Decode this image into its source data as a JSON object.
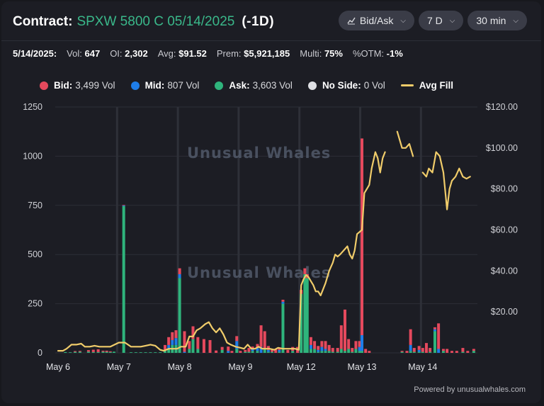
{
  "header": {
    "label": "Contract:",
    "contract": "SPXW 5800 C 05/14/2025",
    "dte": "(-1D)",
    "controls": [
      {
        "label": "Bid/Ask",
        "icon": "line-chart-icon"
      },
      {
        "label": "7 D"
      },
      {
        "label": "30 min"
      }
    ]
  },
  "stats": [
    {
      "label": "5/14/2025:",
      "value": ""
    },
    {
      "label": "Vol:",
      "value": "647"
    },
    {
      "label": "OI:",
      "value": "2,302"
    },
    {
      "label": "Avg:",
      "value": "$91.52"
    },
    {
      "label": "Prem:",
      "value": "$5,921,185"
    },
    {
      "label": "Multi:",
      "value": "75%"
    },
    {
      "label": "%OTM:",
      "value": "-1%"
    }
  ],
  "legend": [
    {
      "name": "Bid:",
      "value": "3,499 Vol",
      "color": "#e5495d"
    },
    {
      "name": "Mid:",
      "value": "807 Vol",
      "color": "#1e7de8"
    },
    {
      "name": "Ask:",
      "value": "3,603 Vol",
      "color": "#2fb47c"
    },
    {
      "name": "No Side:",
      "value": "0 Vol",
      "color": "#dfe0e4"
    },
    {
      "name": "Avg Fill",
      "value": "",
      "color": "#f0cc6a"
    }
  ],
  "watermark": "Unusual Whales",
  "footer": "Powered by unusualwhales.com",
  "colors": {
    "bid": "#e5495d",
    "mid": "#1e7de8",
    "ask": "#2fb47c",
    "avg": "#f0cc6a",
    "grid": "#2c2e37"
  },
  "chart_data": {
    "type": "bar",
    "title": "",
    "x_tick_labels": [
      "May 6",
      "May 7",
      "May 8",
      "May 9",
      "May 12",
      "May 13",
      "May 14"
    ],
    "y_left": {
      "min": 0,
      "max": 1250,
      "ticks": [
        "0",
        "250",
        "500",
        "750",
        "1000",
        "1250"
      ]
    },
    "y_right": {
      "min": 0,
      "max": 120,
      "ticks": [
        "",
        "$20.00",
        "$40.00",
        "$60.00",
        "$80.00",
        "$100.00",
        "$120.00"
      ]
    },
    "day_boundaries": [
      1,
      2,
      3,
      4,
      5,
      6
    ],
    "bars": [
      {
        "t": 0.12,
        "bid": 0,
        "mid": 0,
        "ask": 4
      },
      {
        "t": 0.2,
        "bid": 0,
        "mid": 0,
        "ask": 3
      },
      {
        "t": 0.28,
        "bid": 4,
        "mid": 0,
        "ask": 5
      },
      {
        "t": 0.36,
        "bid": 4,
        "mid": 0,
        "ask": 6
      },
      {
        "t": 0.5,
        "bid": 8,
        "mid": 0,
        "ask": 6
      },
      {
        "t": 0.58,
        "bid": 12,
        "mid": 0,
        "ask": 4
      },
      {
        "t": 0.66,
        "bid": 14,
        "mid": 0,
        "ask": 4
      },
      {
        "t": 0.74,
        "bid": 5,
        "mid": 0,
        "ask": 6
      },
      {
        "t": 0.8,
        "bid": 6,
        "mid": 0,
        "ask": 5
      },
      {
        "t": 0.86,
        "bid": 4,
        "mid": 0,
        "ask": 4
      },
      {
        "t": 0.92,
        "bid": 0,
        "mid": 0,
        "ask": 6
      },
      {
        "t": 1.08,
        "bid": 2,
        "mid": 4,
        "ask": 746
      },
      {
        "t": 1.2,
        "bid": 0,
        "mid": 0,
        "ask": 3
      },
      {
        "t": 1.28,
        "bid": 0,
        "mid": 0,
        "ask": 3
      },
      {
        "t": 1.36,
        "bid": 0,
        "mid": 0,
        "ask": 3
      },
      {
        "t": 1.44,
        "bid": 0,
        "mid": 0,
        "ask": 3
      },
      {
        "t": 1.52,
        "bid": 0,
        "mid": 0,
        "ask": 3
      },
      {
        "t": 1.6,
        "bid": 0,
        "mid": 0,
        "ask": 3
      },
      {
        "t": 1.68,
        "bid": 0,
        "mid": 0,
        "ask": 3
      },
      {
        "t": 1.76,
        "bid": 30,
        "mid": 0,
        "ask": 10
      },
      {
        "t": 1.82,
        "bid": 40,
        "mid": 20,
        "ask": 20
      },
      {
        "t": 1.88,
        "bid": 40,
        "mid": 25,
        "ask": 40
      },
      {
        "t": 1.94,
        "bid": 40,
        "mid": 35,
        "ask": 40
      },
      {
        "t": 2.0,
        "bid": 30,
        "mid": 20,
        "ask": 380
      },
      {
        "t": 2.08,
        "bid": 105,
        "mid": 5,
        "ask": 0
      },
      {
        "t": 2.16,
        "bid": 40,
        "mid": 0,
        "ask": 20
      },
      {
        "t": 2.22,
        "bid": 65,
        "mid": 0,
        "ask": 70
      },
      {
        "t": 2.3,
        "bid": 60,
        "mid": 0,
        "ask": 20
      },
      {
        "t": 2.4,
        "bid": 70,
        "mid": 0,
        "ask": 0
      },
      {
        "t": 2.5,
        "bid": 65,
        "mid": 0,
        "ask": 0
      },
      {
        "t": 2.6,
        "bid": 12,
        "mid": 0,
        "ask": 0
      },
      {
        "t": 2.7,
        "bid": 15,
        "mid": 0,
        "ask": 15
      },
      {
        "t": 2.8,
        "bid": 22,
        "mid": 10,
        "ask": 0
      },
      {
        "t": 2.86,
        "bid": 10,
        "mid": 0,
        "ask": 0
      },
      {
        "t": 2.94,
        "bid": 25,
        "mid": 40,
        "ask": 20
      },
      {
        "t": 3.0,
        "bid": 10,
        "mid": 0,
        "ask": 0
      },
      {
        "t": 3.08,
        "bid": 10,
        "mid": 0,
        "ask": 5
      },
      {
        "t": 3.14,
        "bid": 20,
        "mid": 0,
        "ask": 5
      },
      {
        "t": 3.2,
        "bid": 10,
        "mid": 12,
        "ask": 10
      },
      {
        "t": 3.28,
        "bid": 20,
        "mid": 15,
        "ask": 10
      },
      {
        "t": 3.34,
        "bid": 110,
        "mid": 30,
        "ask": 0
      },
      {
        "t": 3.4,
        "bid": 90,
        "mid": 0,
        "ask": 20
      },
      {
        "t": 3.46,
        "bid": 20,
        "mid": 10,
        "ask": 5
      },
      {
        "t": 3.52,
        "bid": 10,
        "mid": 0,
        "ask": 5
      },
      {
        "t": 3.58,
        "bid": 20,
        "mid": 0,
        "ask": 0
      },
      {
        "t": 3.64,
        "bid": 10,
        "mid": 10,
        "ask": 5
      },
      {
        "t": 3.7,
        "bid": 10,
        "mid": 10,
        "ask": 250
      },
      {
        "t": 3.78,
        "bid": 15,
        "mid": 0,
        "ask": 0
      },
      {
        "t": 3.86,
        "bid": 20,
        "mid": 0,
        "ask": 10
      },
      {
        "t": 3.94,
        "bid": 30,
        "mid": 0,
        "ask": 0
      },
      {
        "t": 4.0,
        "bid": 20,
        "mid": 0,
        "ask": 300
      },
      {
        "t": 4.06,
        "bid": 30,
        "mid": 0,
        "ask": 400
      },
      {
        "t": 4.1,
        "bid": 20,
        "mid": 0,
        "ask": 380
      },
      {
        "t": 4.16,
        "bid": 40,
        "mid": 20,
        "ask": 20
      },
      {
        "t": 4.22,
        "bid": 40,
        "mid": 0,
        "ask": 20
      },
      {
        "t": 4.28,
        "bid": 20,
        "mid": 10,
        "ask": 5
      },
      {
        "t": 4.34,
        "bid": 30,
        "mid": 20,
        "ask": 10
      },
      {
        "t": 4.4,
        "bid": 40,
        "mid": 10,
        "ask": 10
      },
      {
        "t": 4.46,
        "bid": 30,
        "mid": 0,
        "ask": 10
      },
      {
        "t": 4.52,
        "bid": 20,
        "mid": 0,
        "ask": 5
      },
      {
        "t": 4.6,
        "bid": 20,
        "mid": 0,
        "ask": 5
      },
      {
        "t": 4.66,
        "bid": 120,
        "mid": 0,
        "ask": 20
      },
      {
        "t": 4.72,
        "bid": 210,
        "mid": 0,
        "ask": 10
      },
      {
        "t": 4.78,
        "bid": 50,
        "mid": 0,
        "ask": 20
      },
      {
        "t": 4.84,
        "bid": 20,
        "mid": 0,
        "ask": 5
      },
      {
        "t": 4.9,
        "bid": 40,
        "mid": 0,
        "ask": 20
      },
      {
        "t": 4.96,
        "bid": 30,
        "mid": 20,
        "ask": 10
      },
      {
        "t": 5.0,
        "bid": 1000,
        "mid": 80,
        "ask": 10
      },
      {
        "t": 5.06,
        "bid": 20,
        "mid": 0,
        "ask": 0
      },
      {
        "t": 5.12,
        "bid": 10,
        "mid": 0,
        "ask": 0
      },
      {
        "t": 5.66,
        "bid": 5,
        "mid": 0,
        "ask": 5
      },
      {
        "t": 5.74,
        "bid": 10,
        "mid": 0,
        "ask": 0
      },
      {
        "t": 5.8,
        "bid": 80,
        "mid": 30,
        "ask": 10
      },
      {
        "t": 5.86,
        "bid": 20,
        "mid": 0,
        "ask": 5
      },
      {
        "t": 5.94,
        "bid": 20,
        "mid": 10,
        "ask": 5
      },
      {
        "t": 6.0,
        "bid": 20,
        "mid": 0,
        "ask": 5
      },
      {
        "t": 6.06,
        "bid": 50,
        "mid": 0,
        "ask": 0
      },
      {
        "t": 6.12,
        "bid": 20,
        "mid": 0,
        "ask": 5
      },
      {
        "t": 6.2,
        "bid": 10,
        "mid": 10,
        "ask": 110
      },
      {
        "t": 6.26,
        "bid": 130,
        "mid": 20,
        "ask": 0
      },
      {
        "t": 6.34,
        "bid": 10,
        "mid": 0,
        "ask": 10
      },
      {
        "t": 6.4,
        "bid": 20,
        "mid": 0,
        "ask": 0
      },
      {
        "t": 6.48,
        "bid": 10,
        "mid": 0,
        "ask": 0
      },
      {
        "t": 6.56,
        "bid": 10,
        "mid": 0,
        "ask": 0
      },
      {
        "t": 6.66,
        "bid": 20,
        "mid": 0,
        "ask": 5
      },
      {
        "t": 6.74,
        "bid": 10,
        "mid": 0,
        "ask": 0
      },
      {
        "t": 6.84,
        "bid": 10,
        "mid": 0,
        "ask": 10
      }
    ],
    "avg_fill": [
      [
        [
          0.0,
          1
        ],
        [
          0.08,
          1
        ],
        [
          0.14,
          2
        ],
        [
          0.22,
          4
        ],
        [
          0.3,
          4
        ],
        [
          0.38,
          4.5
        ],
        [
          0.44,
          3
        ],
        [
          0.52,
          3
        ],
        [
          0.6,
          3.5
        ],
        [
          0.68,
          3
        ],
        [
          0.76,
          3
        ],
        [
          0.86,
          3
        ],
        [
          1.0,
          5
        ],
        [
          1.1,
          5
        ],
        [
          1.2,
          3
        ],
        [
          1.28,
          3
        ],
        [
          1.36,
          3
        ],
        [
          1.44,
          3.5
        ],
        [
          1.52,
          4
        ],
        [
          1.6,
          3.5
        ],
        [
          1.68,
          1.5
        ],
        [
          1.74,
          1
        ],
        [
          1.82,
          2
        ],
        [
          1.9,
          2
        ],
        [
          1.96,
          2
        ],
        [
          2.02,
          3
        ],
        [
          2.1,
          3
        ],
        [
          2.16,
          8
        ],
        [
          2.22,
          8
        ],
        [
          2.28,
          11
        ],
        [
          2.34,
          12
        ],
        [
          2.42,
          14
        ],
        [
          2.48,
          15
        ],
        [
          2.54,
          12
        ],
        [
          2.6,
          10
        ],
        [
          2.66,
          12
        ],
        [
          2.72,
          9
        ],
        [
          2.78,
          5
        ],
        [
          2.84,
          4
        ],
        [
          2.92,
          3
        ],
        [
          3.0,
          2.5
        ],
        [
          3.06,
          2
        ],
        [
          3.12,
          4
        ],
        [
          3.18,
          2
        ],
        [
          3.24,
          2
        ],
        [
          3.3,
          3
        ],
        [
          3.36,
          2
        ],
        [
          3.42,
          2
        ],
        [
          3.48,
          2
        ],
        [
          3.56,
          1.5
        ],
        [
          3.62,
          2.5
        ],
        [
          3.7,
          2
        ],
        [
          3.76,
          2
        ],
        [
          3.82,
          2
        ],
        [
          3.9,
          2
        ],
        [
          3.96,
          1.5
        ],
        [
          4.0,
          33
        ],
        [
          4.04,
          36
        ],
        [
          4.08,
          38
        ],
        [
          4.12,
          37
        ],
        [
          4.16,
          35
        ],
        [
          4.2,
          33
        ],
        [
          4.24,
          30
        ],
        [
          4.28,
          30
        ],
        [
          4.32,
          28
        ],
        [
          4.4,
          34
        ],
        [
          4.46,
          40
        ],
        [
          4.52,
          44
        ],
        [
          4.56,
          48
        ],
        [
          4.6,
          47
        ],
        [
          4.64,
          48
        ],
        [
          4.7,
          50
        ],
        [
          4.76,
          52
        ],
        [
          4.8,
          48
        ],
        [
          4.84,
          46
        ],
        [
          4.88,
          50
        ],
        [
          4.92,
          58
        ],
        [
          5.0,
          60
        ],
        [
          5.04,
          78
        ],
        [
          5.08,
          80
        ],
        [
          5.12,
          82
        ],
        [
          5.16,
          90
        ],
        [
          5.22,
          98
        ],
        [
          5.26,
          95
        ],
        [
          5.3,
          88
        ],
        [
          5.34,
          95
        ],
        [
          5.38,
          98
        ]
      ],
      [
        [
          5.58,
          108
        ],
        [
          5.66,
          100
        ],
        [
          5.72,
          100
        ],
        [
          5.78,
          102
        ],
        [
          5.84,
          96
        ]
      ],
      [
        [
          6.0,
          88
        ],
        [
          6.06,
          86
        ],
        [
          6.1,
          90
        ],
        [
          6.16,
          88
        ],
        [
          6.22,
          98
        ],
        [
          6.28,
          96
        ],
        [
          6.34,
          88
        ],
        [
          6.4,
          70
        ],
        [
          6.44,
          80
        ],
        [
          6.48,
          84
        ],
        [
          6.54,
          86
        ],
        [
          6.6,
          90
        ],
        [
          6.66,
          86
        ],
        [
          6.72,
          85
        ],
        [
          6.78,
          86
        ]
      ]
    ]
  }
}
